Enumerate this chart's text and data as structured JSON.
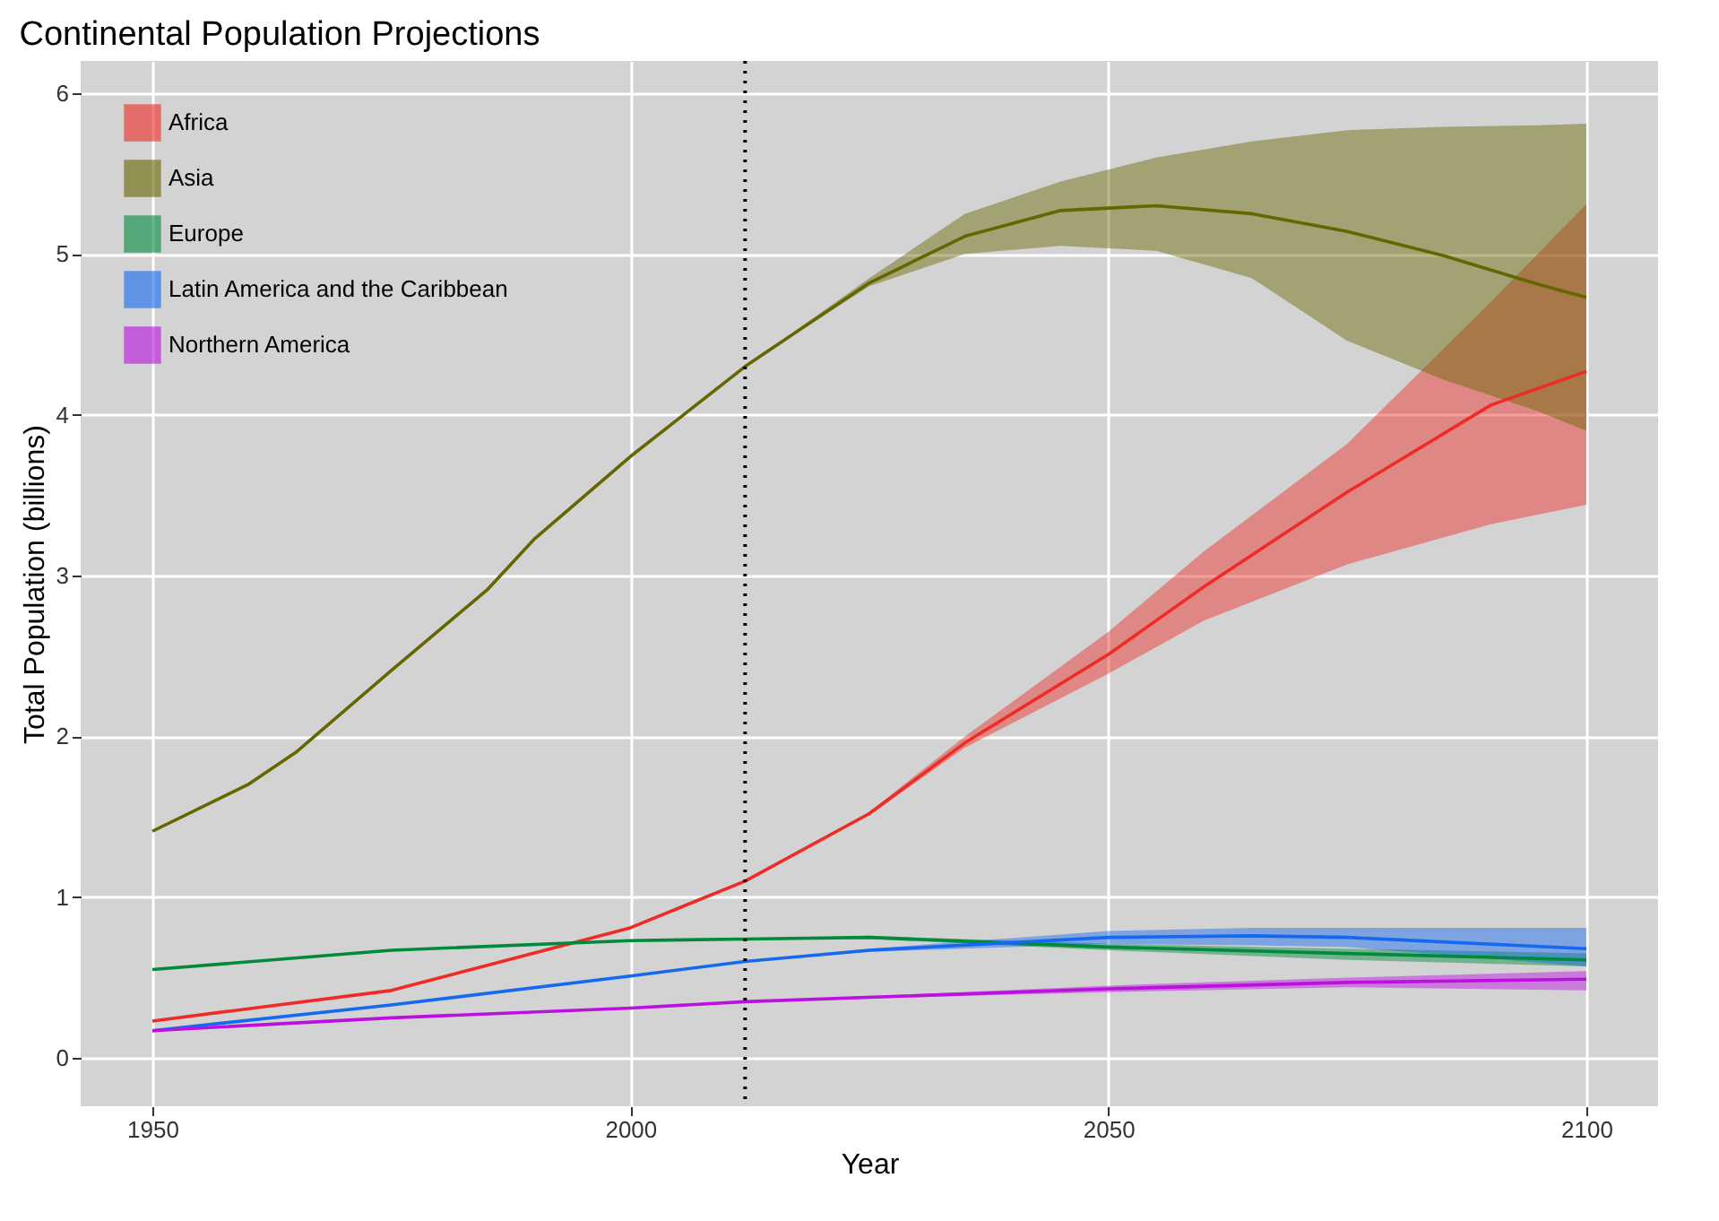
{
  "chart_data": {
    "type": "line",
    "title": "Continental Population Projections",
    "xlabel": "Year",
    "ylabel": "Total Population (billions)",
    "xlim": [
      1942.5,
      2107.5
    ],
    "xticks": [
      1950,
      2000,
      2050,
      2100
    ],
    "ylim": [
      -0.3,
      6.2
    ],
    "yticks": [
      0,
      1,
      2,
      3,
      4,
      5,
      6
    ],
    "grid": true,
    "legend": "top left",
    "line_style": "solid",
    "marker": "none",
    "ref_lines": [
      {
        "axis": "x",
        "value": 2012,
        "color": "#000000",
        "line_style": "dotted"
      }
    ],
    "series": [
      {
        "name": "Africa",
        "color": "#ee2b24",
        "x": [
          1950,
          1975,
          2000,
          2012,
          2025,
          2035,
          2050,
          2060,
          2075,
          2090,
          2100
        ],
        "values": [
          0.23,
          0.42,
          0.81,
          1.1,
          1.52,
          1.96,
          2.51,
          2.93,
          3.52,
          4.06,
          4.27
        ],
        "lower": [
          null,
          null,
          null,
          1.1,
          1.51,
          1.93,
          2.39,
          2.72,
          3.07,
          3.32,
          3.44
        ],
        "upper": [
          null,
          null,
          null,
          1.1,
          1.53,
          2.0,
          2.65,
          3.15,
          3.82,
          4.7,
          5.31
        ]
      },
      {
        "name": "Asia",
        "color": "#666600",
        "x": [
          1950,
          1960,
          1965,
          1975,
          1985,
          1990,
          2000,
          2012,
          2025,
          2035,
          2045,
          2055,
          2065,
          2075,
          2085,
          2095,
          2100
        ],
        "values": [
          1.41,
          1.7,
          1.9,
          2.41,
          2.91,
          3.23,
          3.74,
          4.3,
          4.82,
          5.11,
          5.27,
          5.3,
          5.25,
          5.14,
          4.99,
          4.81,
          4.73
        ],
        "lower": [
          null,
          null,
          null,
          null,
          null,
          null,
          null,
          4.3,
          4.8,
          5.0,
          5.05,
          5.02,
          4.85,
          4.46,
          4.22,
          4.02,
          3.9
        ],
        "upper": [
          null,
          null,
          null,
          null,
          null,
          null,
          null,
          4.3,
          4.85,
          5.25,
          5.45,
          5.6,
          5.7,
          5.77,
          5.79,
          5.8,
          5.81
        ]
      },
      {
        "name": "Europe",
        "color": "#008a3c",
        "x": [
          1950,
          1975,
          2000,
          2012,
          2025,
          2050,
          2075,
          2100
        ],
        "values": [
          0.55,
          0.67,
          0.73,
          0.74,
          0.75,
          0.69,
          0.65,
          0.61
        ],
        "lower": [
          null,
          null,
          null,
          0.74,
          0.74,
          0.67,
          0.61,
          0.57
        ],
        "upper": [
          null,
          null,
          null,
          0.74,
          0.76,
          0.71,
          0.68,
          0.65
        ]
      },
      {
        "name": "Latin America and the Caribbean",
        "color": "#1469f0",
        "x": [
          1950,
          1975,
          2000,
          2012,
          2025,
          2050,
          2065,
          2075,
          2100
        ],
        "values": [
          0.17,
          0.33,
          0.51,
          0.6,
          0.67,
          0.75,
          0.76,
          0.75,
          0.68
        ],
        "lower": [
          null,
          null,
          null,
          0.6,
          0.66,
          0.71,
          0.7,
          0.69,
          0.57
        ],
        "upper": [
          null,
          null,
          null,
          0.6,
          0.68,
          0.79,
          0.81,
          0.81,
          0.81
        ]
      },
      {
        "name": "Northern America",
        "color": "#bb10e0",
        "x": [
          1950,
          1975,
          2000,
          2012,
          2050,
          2075,
          2100
        ],
        "values": [
          0.17,
          0.25,
          0.31,
          0.35,
          0.43,
          0.47,
          0.49
        ],
        "lower": [
          null,
          null,
          null,
          0.35,
          0.41,
          0.44,
          0.42
        ],
        "upper": [
          null,
          null,
          null,
          0.35,
          0.45,
          0.5,
          0.54
        ]
      }
    ]
  }
}
